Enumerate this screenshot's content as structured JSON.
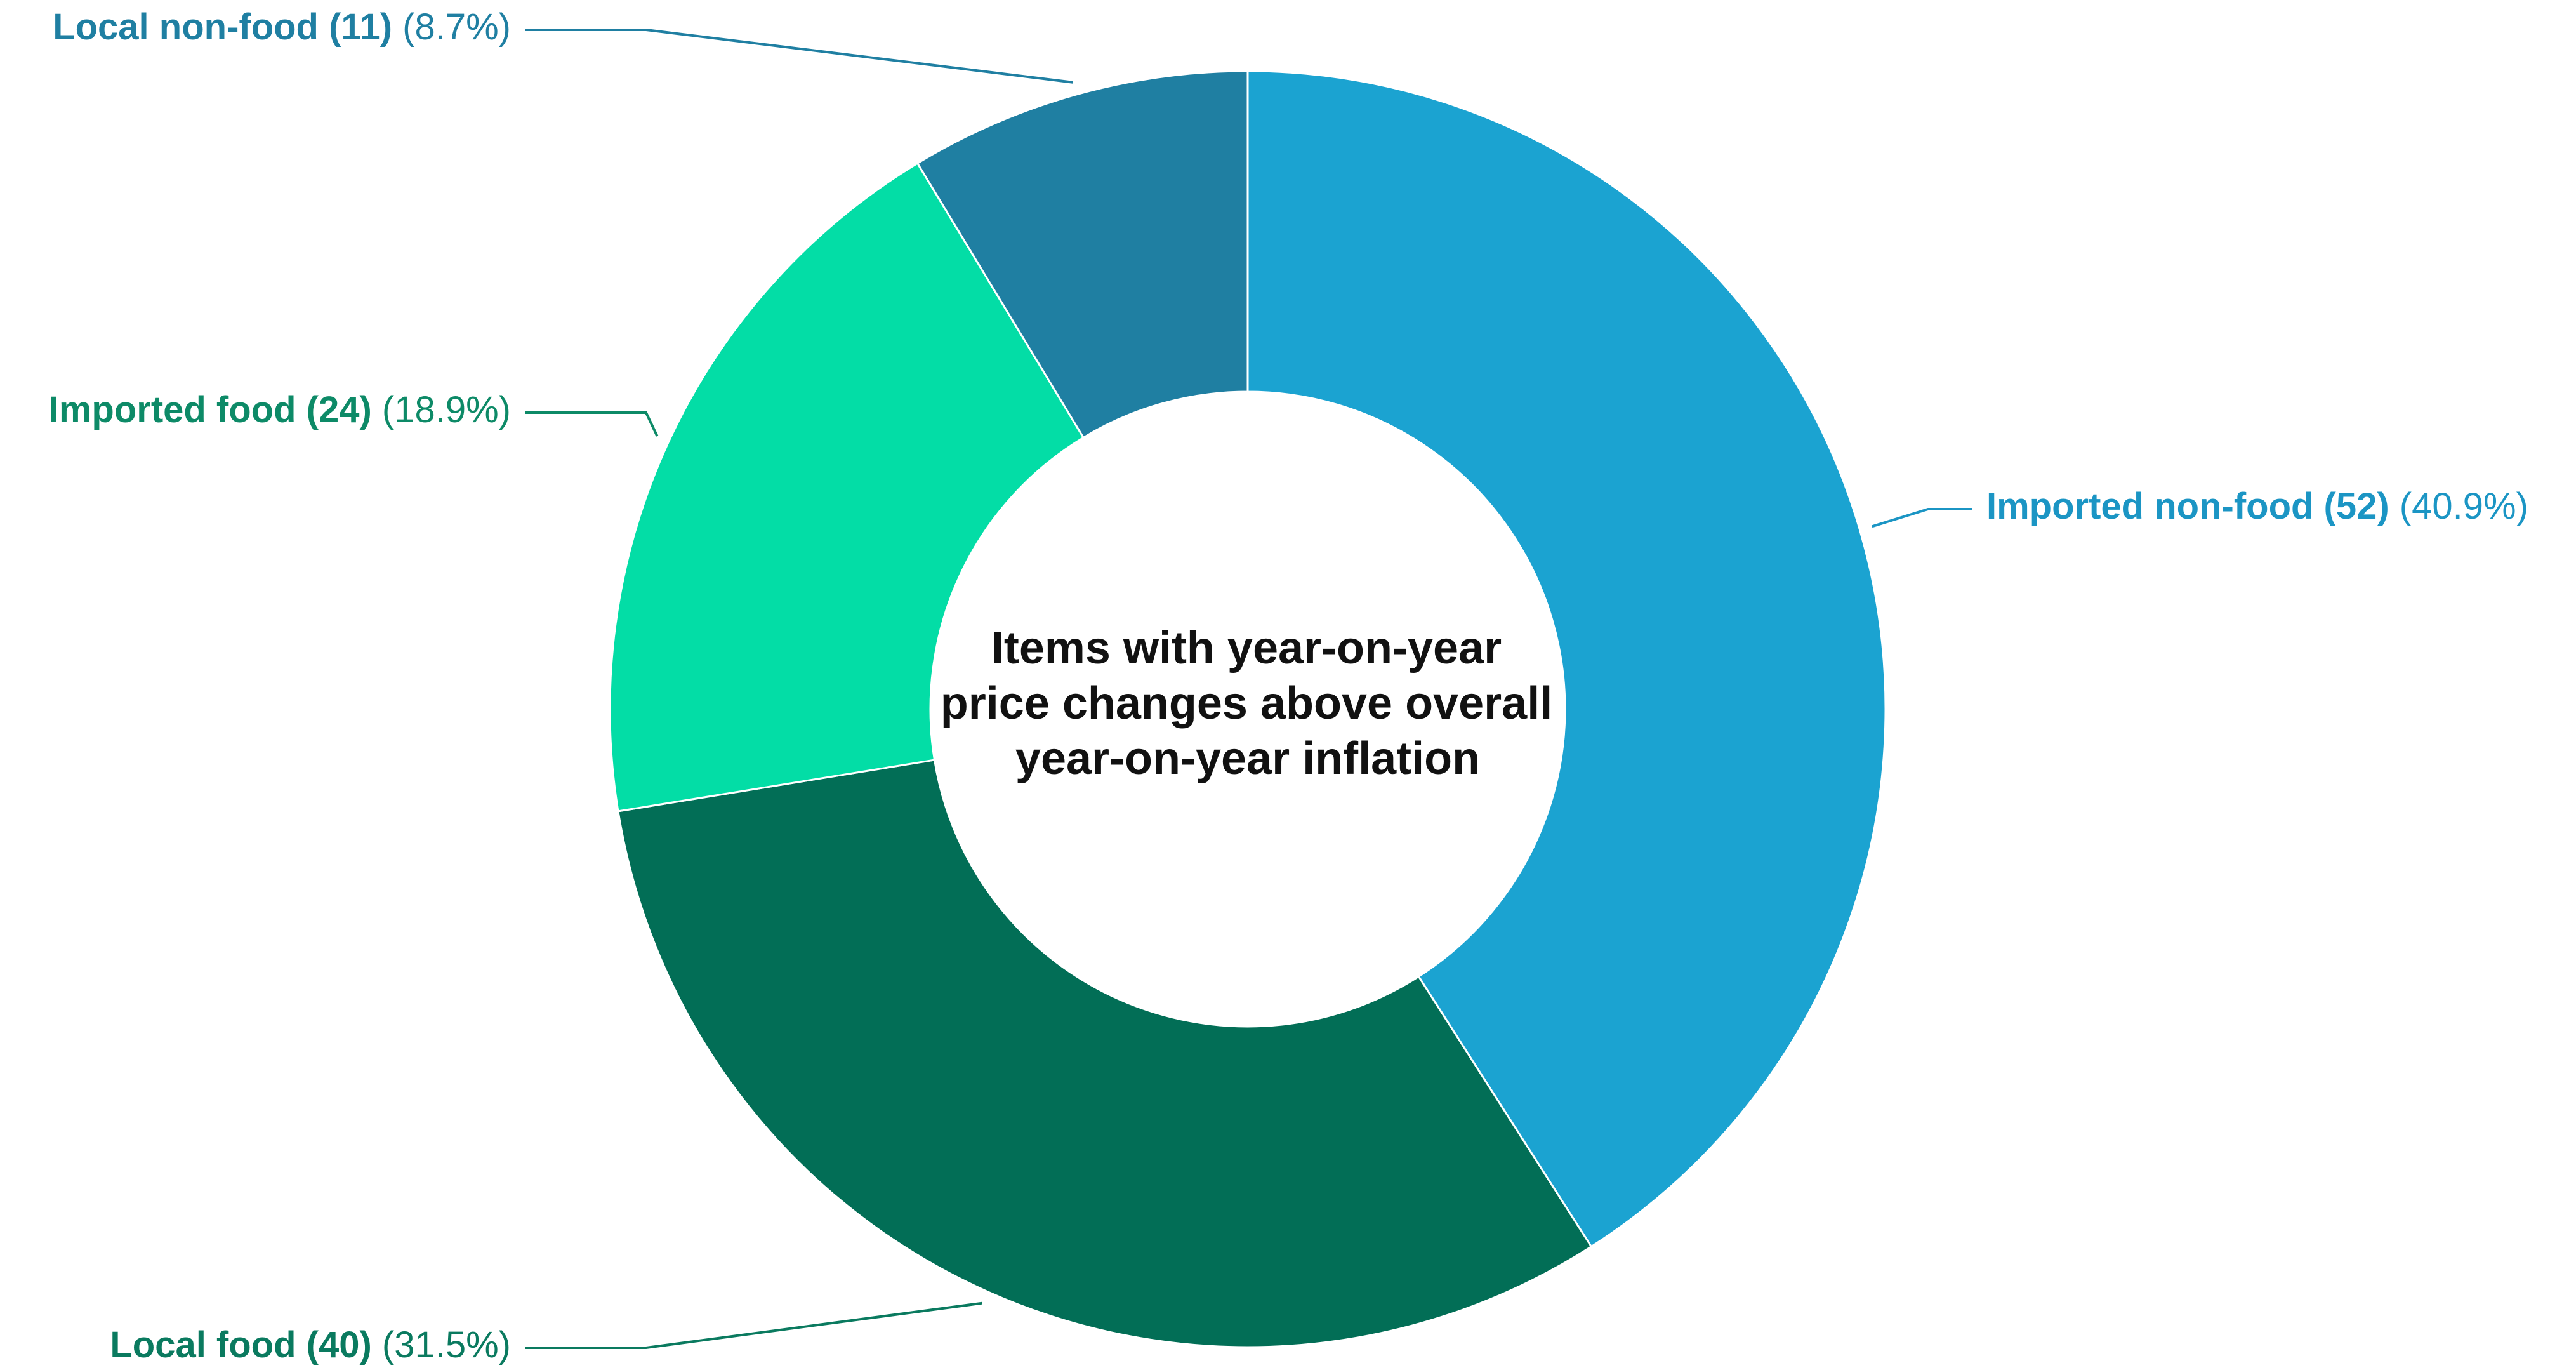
{
  "chart_data": {
    "type": "pie",
    "donut": true,
    "center_title": [
      "Items with year-on-year",
      "price changes above overall",
      "year-on-year inflation"
    ],
    "slices": [
      {
        "name": "Imported non-food",
        "count": 52,
        "count_text": "(52)",
        "percent": 40.9,
        "percent_text": "(40.9%)",
        "color": "#1BA3D1",
        "label_color": "#1B95C4"
      },
      {
        "name": "Local food",
        "count": 40,
        "count_text": "(40)",
        "percent": 31.5,
        "percent_text": "(31.5%)",
        "color": "#026E56",
        "label_color": "#0A7A5F"
      },
      {
        "name": "Imported food",
        "count": 24,
        "count_text": "(24)",
        "percent": 18.9,
        "percent_text": "(18.9%)",
        "color": "#03DDA6",
        "label_color": "#0D8A67"
      },
      {
        "name": "Local non-food",
        "count": 11,
        "count_text": "(11)",
        "percent": 8.7,
        "percent_text": "(8.7%)",
        "color": "#1F7FA2",
        "label_color": "#1F7FA2"
      }
    ]
  }
}
